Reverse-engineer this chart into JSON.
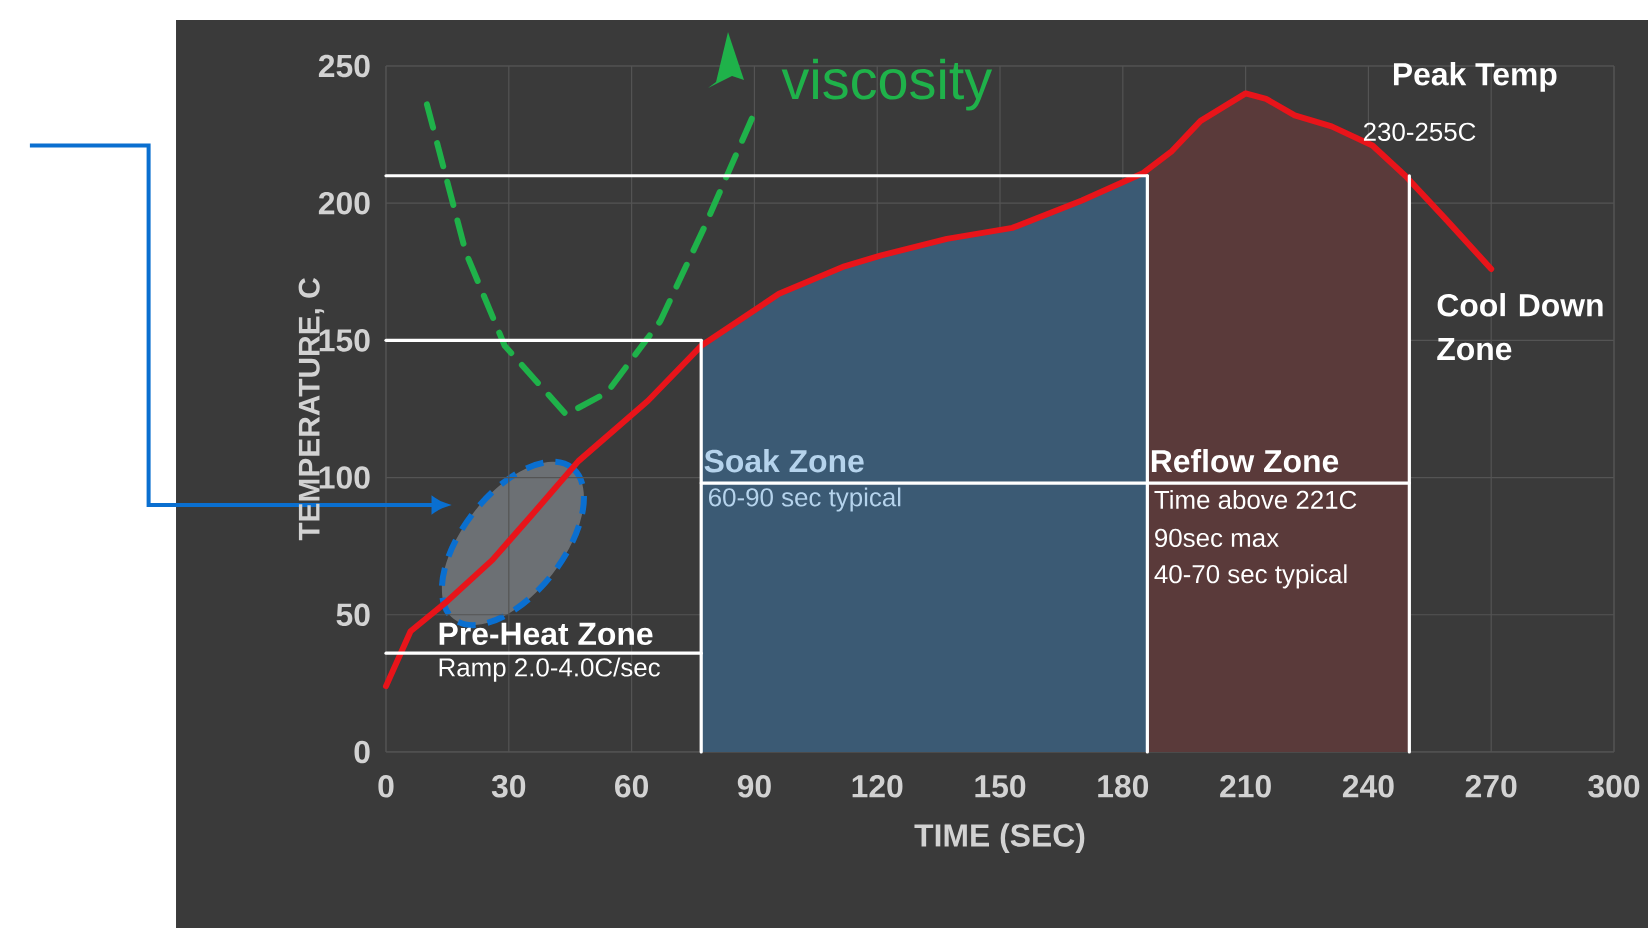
{
  "chart_data": {
    "type": "line",
    "xlabel": "TIME (SEC)",
    "ylabel": "TEMPERATURE, C",
    "xlim": [
      0,
      300
    ],
    "ylim": [
      0,
      250
    ],
    "xticks": [
      0,
      30,
      60,
      90,
      120,
      150,
      180,
      210,
      240,
      270,
      300
    ],
    "yticks": [
      0,
      50,
      100,
      150,
      200,
      250
    ],
    "grid": true,
    "marker": "none",
    "series": [
      {
        "color": "#e8141a",
        "x": [
          0,
          6,
          15,
          26,
          36,
          47,
          64,
          77,
          96,
          112,
          121,
          137,
          153,
          170,
          185,
          192,
          199,
          210,
          215,
          222,
          231,
          241,
          249,
          259,
          270
        ],
        "values": [
          24,
          44,
          55,
          70,
          87,
          106,
          128,
          148,
          167,
          177,
          181,
          187,
          191,
          201,
          211,
          219,
          230,
          240,
          238,
          232,
          228,
          221,
          210,
          194,
          176
        ]
      },
      {
        "name": "viscosity",
        "color": "#1fb24a",
        "line_style": "dashed",
        "x": [
          10,
          19.5,
          29,
          44,
          54,
          67,
          78,
          90
        ],
        "values": [
          236,
          182,
          148,
          123,
          131,
          157,
          192,
          233
        ]
      },
      {
        "color": "#ffffff",
        "x": [
          0,
          186
        ],
        "values": [
          210,
          210
        ]
      },
      {
        "color": "#ffffff",
        "x": [
          0,
          77
        ],
        "values": [
          150,
          150
        ]
      },
      {
        "color": "#ffffff",
        "x": [
          0,
          77
        ],
        "values": [
          36,
          36
        ]
      },
      {
        "color": "#ffffff",
        "x": [
          77,
          250
        ],
        "values": [
          98,
          98
        ]
      },
      {
        "color": "#ffffff",
        "x": [
          77,
          77
        ],
        "values": [
          0,
          150
        ]
      },
      {
        "color": "#ffffff",
        "x": [
          186,
          186
        ],
        "values": [
          0,
          210
        ]
      },
      {
        "color": "#ffffff",
        "x": [
          250,
          250
        ],
        "values": [
          0,
          210
        ]
      }
    ],
    "bands": [
      {
        "axis": "x",
        "from": 77,
        "to": 186,
        "label": "Soak Zone",
        "color": "#3b5a74"
      },
      {
        "axis": "x",
        "from": 186,
        "to": 250,
        "label": "Reflow Zone",
        "color": "#5a3a3a"
      }
    ],
    "annotations": [
      "Pre-Heat Zone",
      "Ramp 2.0-4.0C/sec",
      "60-90 sec typical",
      "Time above 221C",
      "90sec max",
      "40-70 sec typical",
      "Peak Temp",
      "230-255C",
      "Cool Down Zone"
    ]
  }
}
